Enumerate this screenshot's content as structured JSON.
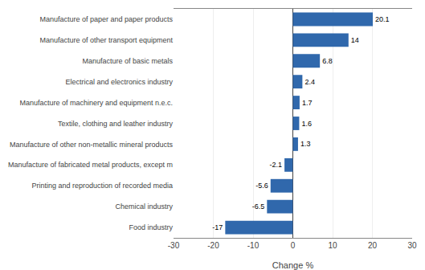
{
  "chart_data": {
    "type": "bar",
    "orientation": "horizontal",
    "categories": [
      "Food industry",
      "Chemical industry",
      "Printing and reproduction of recorded media",
      "Manufacture of fabricated metal products, except m",
      "Manufacture of other non-metallic mineral products",
      "Textile, clothing and leather industry",
      "Manufacture of machinery and equipment n.e.c.",
      "Electrical and electronics industry",
      "Manufacture of basic metals",
      "Manufacture of other transport equipment",
      "Manufacture of paper and paper products"
    ],
    "values": [
      -17,
      -6.5,
      -5.6,
      -2.1,
      1.3,
      1.6,
      1.7,
      2.4,
      6.8,
      14,
      20.1
    ],
    "color": "#3068AC",
    "xlabel": "Change %",
    "xlim": [
      -30,
      30
    ],
    "xticks": [
      -30,
      -20,
      -10,
      0,
      10,
      20,
      30
    ],
    "grid": true,
    "data_labels": true
  }
}
